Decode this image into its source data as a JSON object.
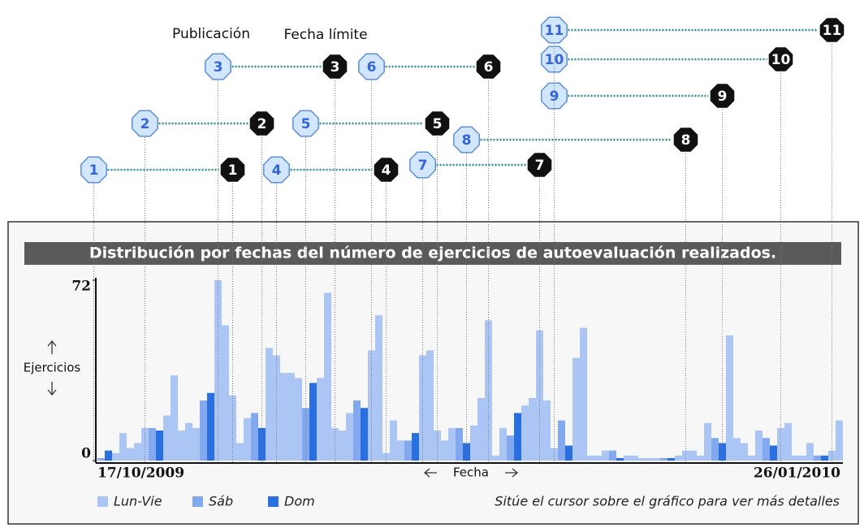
{
  "chart_data": {
    "type": "bar",
    "title": "Distribución por fechas del número de ejercicios de autoevaluación realizados.",
    "y_label": "Ejercicios",
    "x_label": "Fecha",
    "hint": "Sitúe el cursor sobre el gráfico para ver más detalles",
    "ylim": [
      0,
      72
    ],
    "yticks": [
      0,
      72
    ],
    "categories": [
      "17/10/2009",
      null,
      null,
      null,
      null,
      null,
      null,
      null,
      null,
      null,
      null,
      null,
      null,
      null,
      null,
      null,
      null,
      null,
      null,
      null,
      null,
      null,
      null,
      null,
      null,
      null,
      null,
      null,
      null,
      null,
      null,
      null,
      null,
      null,
      null,
      null,
      null,
      null,
      null,
      null,
      null,
      null,
      null,
      null,
      null,
      null,
      null,
      null,
      null,
      null,
      null,
      null,
      null,
      null,
      null,
      null,
      null,
      null,
      null,
      null,
      null,
      null,
      null,
      null,
      null,
      null,
      null,
      null,
      null,
      null,
      null,
      null,
      null,
      null,
      null,
      null,
      null,
      null,
      null,
      null,
      null,
      null,
      null,
      null,
      null,
      null,
      null,
      null,
      null,
      null,
      null,
      null,
      null,
      null,
      null,
      null,
      null,
      null,
      null,
      null,
      null,
      "26/01/2010"
    ],
    "series": [
      {
        "name": "Lun-Vie",
        "color": "#abc6f5",
        "values": [
          null,
          null,
          3,
          11,
          5,
          7,
          13,
          null,
          null,
          18,
          34,
          12,
          15,
          13,
          null,
          null,
          72,
          54,
          26,
          7,
          17,
          null,
          null,
          45,
          42,
          35,
          35,
          33,
          null,
          null,
          33,
          67,
          13,
          12,
          19,
          null,
          null,
          44,
          58,
          3,
          16,
          8,
          null,
          null,
          42,
          44,
          12,
          8,
          13,
          null,
          null,
          14,
          25,
          56,
          2,
          13,
          null,
          null,
          22,
          25,
          52,
          24,
          5,
          null,
          null,
          41,
          53,
          2,
          2,
          4,
          null,
          null,
          2,
          2,
          1,
          1,
          1,
          null,
          null,
          2,
          4,
          4,
          2,
          15,
          null,
          null,
          50,
          9,
          7,
          2,
          12,
          null,
          null,
          13,
          15,
          2,
          2,
          7,
          null,
          null,
          4,
          16
        ]
      },
      {
        "name": "Sáb",
        "color": "#82a8ef",
        "values": [
          1,
          null,
          null,
          null,
          null,
          null,
          null,
          13,
          null,
          null,
          null,
          null,
          null,
          null,
          24,
          null,
          null,
          null,
          null,
          null,
          null,
          19,
          null,
          null,
          null,
          null,
          null,
          null,
          21,
          null,
          null,
          null,
          null,
          null,
          null,
          24,
          null,
          null,
          null,
          null,
          null,
          null,
          8,
          null,
          null,
          null,
          null,
          null,
          null,
          13,
          null,
          null,
          null,
          null,
          null,
          null,
          10,
          null,
          null,
          null,
          null,
          null,
          null,
          16,
          null,
          null,
          null,
          null,
          null,
          null,
          4,
          null,
          null,
          null,
          null,
          null,
          null,
          1,
          null,
          null,
          null,
          null,
          null,
          null,
          9,
          null,
          null,
          null,
          null,
          null,
          null,
          9,
          null,
          null,
          null,
          null,
          null,
          null,
          2,
          null,
          null,
          null
        ]
      },
      {
        "name": "Dom",
        "color": "#2a6fe0",
        "values": [
          null,
          4,
          null,
          null,
          null,
          null,
          null,
          null,
          12,
          null,
          null,
          null,
          null,
          null,
          null,
          27,
          null,
          null,
          null,
          null,
          null,
          null,
          13,
          null,
          null,
          null,
          null,
          null,
          null,
          31,
          null,
          null,
          null,
          null,
          null,
          null,
          21,
          null,
          null,
          null,
          null,
          null,
          null,
          11,
          null,
          null,
          null,
          null,
          null,
          null,
          7,
          null,
          null,
          null,
          null,
          null,
          null,
          19,
          null,
          null,
          null,
          null,
          null,
          null,
          6,
          null,
          null,
          null,
          null,
          null,
          null,
          1,
          null,
          null,
          null,
          null,
          null,
          null,
          1,
          null,
          null,
          null,
          null,
          null,
          null,
          7,
          null,
          null,
          null,
          null,
          null,
          null,
          6,
          null,
          null,
          null,
          null,
          null,
          null,
          2,
          null,
          null
        ]
      }
    ],
    "annotation_headers": [
      "Publicación",
      "Fecha límite"
    ],
    "annotations": [
      {
        "label": "1",
        "publication": -1,
        "deadline": 18
      },
      {
        "label": "2",
        "publication": 6,
        "deadline": 22
      },
      {
        "label": "3",
        "publication": 16,
        "deadline": 32
      },
      {
        "label": "4",
        "publication": 24,
        "deadline": 39
      },
      {
        "label": "5",
        "publication": 28,
        "deadline": 46
      },
      {
        "label": "6",
        "publication": 37,
        "deadline": 53
      },
      {
        "label": "7",
        "publication": 44,
        "deadline": 60
      },
      {
        "label": "8",
        "publication": 50,
        "deadline": 80
      },
      {
        "label": "9",
        "publication": 62,
        "deadline": 85
      },
      {
        "label": "10",
        "publication": 62,
        "deadline": 93
      },
      {
        "label": "11",
        "publication": 62,
        "deadline": 100
      }
    ]
  }
}
